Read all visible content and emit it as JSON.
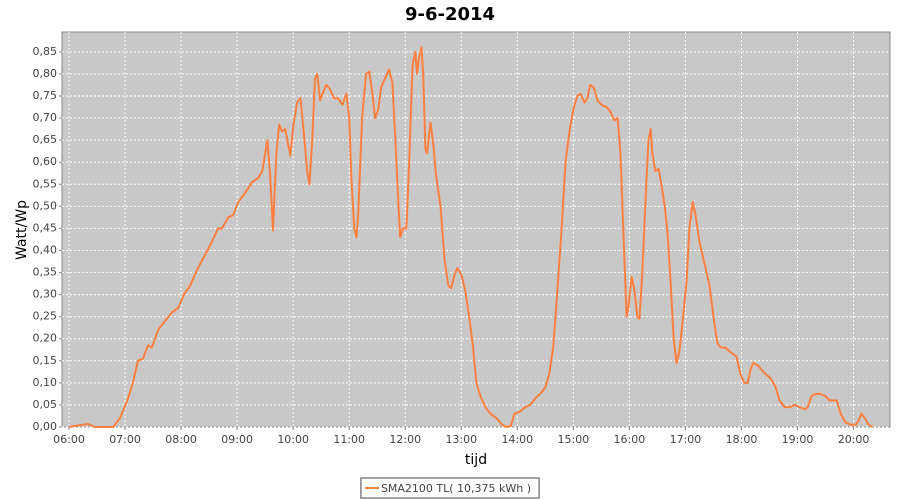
{
  "chart_data": {
    "type": "line",
    "title": "9-6-2014",
    "x_label": "tijd",
    "y_label": "Watt/Wp",
    "x": [
      6.0,
      6.34,
      6.46,
      6.79,
      6.91,
      7.04,
      7.14,
      7.23,
      7.32,
      7.41,
      7.48,
      7.59,
      7.71,
      7.84,
      7.95,
      8.05,
      8.16,
      8.3,
      8.43,
      8.55,
      8.66,
      8.73,
      8.84,
      8.93,
      9.02,
      9.14,
      9.27,
      9.38,
      9.45,
      9.54,
      9.59,
      9.64,
      9.7,
      9.75,
      9.8,
      9.86,
      9.91,
      9.95,
      10.0,
      10.07,
      10.13,
      10.18,
      10.25,
      10.29,
      10.34,
      10.39,
      10.43,
      10.48,
      10.54,
      10.59,
      10.66,
      10.73,
      10.8,
      10.88,
      10.95,
      11.0,
      11.04,
      11.09,
      11.13,
      11.16,
      11.23,
      11.3,
      11.36,
      11.41,
      11.46,
      11.52,
      11.57,
      11.64,
      11.71,
      11.77,
      11.82,
      11.88,
      11.91,
      11.96,
      12.02,
      12.07,
      12.13,
      12.18,
      12.21,
      12.25,
      12.29,
      12.32,
      12.36,
      12.39,
      12.45,
      12.5,
      12.55,
      12.63,
      12.7,
      12.77,
      12.82,
      12.88,
      12.93,
      13.0,
      13.07,
      13.14,
      13.21,
      13.27,
      13.34,
      13.43,
      13.52,
      13.63,
      13.73,
      13.8,
      13.88,
      13.95,
      14.05,
      14.14,
      14.23,
      14.32,
      14.41,
      14.5,
      14.57,
      14.64,
      14.71,
      14.79,
      14.86,
      14.93,
      15.0,
      15.07,
      15.13,
      15.2,
      15.25,
      15.3,
      15.36,
      15.43,
      15.5,
      15.59,
      15.66,
      15.73,
      15.79,
      15.84,
      15.89,
      15.95,
      15.98,
      16.04,
      16.09,
      16.14,
      16.18,
      16.23,
      16.29,
      16.34,
      16.38,
      16.41,
      16.46,
      16.52,
      16.57,
      16.63,
      16.68,
      16.73,
      16.79,
      16.84,
      16.89,
      16.95,
      17.02,
      17.07,
      17.13,
      17.18,
      17.25,
      17.34,
      17.43,
      17.5,
      17.57,
      17.63,
      17.71,
      17.8,
      17.91,
      17.98,
      18.05,
      18.11,
      18.16,
      18.21,
      18.29,
      18.39,
      18.52,
      18.61,
      18.68,
      18.77,
      18.86,
      18.95,
      19.04,
      19.13,
      19.18,
      19.25,
      19.32,
      19.41,
      19.5,
      19.57,
      19.64,
      19.7,
      19.77,
      19.86,
      19.95,
      20.04,
      20.09,
      20.14,
      20.2,
      20.27,
      20.34
    ],
    "series": [
      {
        "name": "SMA2100 TL( 10,375 kWh )",
        "color": "#ff7f3f",
        "values": [
          0,
          0.007,
          0,
          0,
          0.02,
          0.06,
          0.1,
          0.15,
          0.155,
          0.185,
          0.18,
          0.22,
          0.24,
          0.26,
          0.27,
          0.3,
          0.32,
          0.36,
          0.39,
          0.42,
          0.45,
          0.45,
          0.475,
          0.48,
          0.51,
          0.53,
          0.555,
          0.565,
          0.58,
          0.65,
          0.57,
          0.445,
          0.62,
          0.685,
          0.67,
          0.675,
          0.64,
          0.615,
          0.68,
          0.735,
          0.745,
          0.68,
          0.58,
          0.55,
          0.65,
          0.79,
          0.8,
          0.74,
          0.76,
          0.775,
          0.765,
          0.745,
          0.745,
          0.73,
          0.755,
          0.7,
          0.56,
          0.45,
          0.43,
          0.48,
          0.7,
          0.8,
          0.805,
          0.76,
          0.7,
          0.72,
          0.77,
          0.79,
          0.81,
          0.78,
          0.66,
          0.5,
          0.43,
          0.45,
          0.45,
          0.6,
          0.82,
          0.85,
          0.8,
          0.84,
          0.86,
          0.8,
          0.63,
          0.62,
          0.69,
          0.64,
          0.57,
          0.5,
          0.38,
          0.32,
          0.315,
          0.345,
          0.36,
          0.345,
          0.31,
          0.25,
          0.18,
          0.1,
          0.07,
          0.045,
          0.03,
          0.02,
          0.005,
          0,
          0.002,
          0.03,
          0.035,
          0.045,
          0.05,
          0.065,
          0.075,
          0.09,
          0.12,
          0.18,
          0.3,
          0.45,
          0.6,
          0.67,
          0.72,
          0.75,
          0.755,
          0.735,
          0.745,
          0.775,
          0.77,
          0.74,
          0.73,
          0.725,
          0.715,
          0.695,
          0.7,
          0.62,
          0.45,
          0.25,
          0.27,
          0.34,
          0.31,
          0.25,
          0.245,
          0.35,
          0.52,
          0.65,
          0.675,
          0.62,
          0.58,
          0.585,
          0.55,
          0.5,
          0.44,
          0.34,
          0.2,
          0.145,
          0.17,
          0.24,
          0.33,
          0.45,
          0.51,
          0.48,
          0.42,
          0.37,
          0.32,
          0.25,
          0.19,
          0.18,
          0.18,
          0.17,
          0.16,
          0.12,
          0.1,
          0.1,
          0.13,
          0.145,
          0.14,
          0.125,
          0.11,
          0.09,
          0.06,
          0.045,
          0.045,
          0.05,
          0.045,
          0.04,
          0.045,
          0.07,
          0.075,
          0.075,
          0.07,
          0.06,
          0.06,
          0.06,
          0.03,
          0.01,
          0.005,
          0.005,
          0.015,
          0.03,
          0.02,
          0.005,
          0
        ]
      }
    ],
    "xlim": [
      5.875,
      20.65
    ],
    "xticks": [
      {
        "value": 6,
        "label": "06:00"
      },
      {
        "value": 7,
        "label": "07:00"
      },
      {
        "value": 8,
        "label": "08:00"
      },
      {
        "value": 9,
        "label": "09:00"
      },
      {
        "value": 10,
        "label": "10:00"
      },
      {
        "value": 11,
        "label": "11:00"
      },
      {
        "value": 12,
        "label": "12:00"
      },
      {
        "value": 13,
        "label": "13:00"
      },
      {
        "value": 14,
        "label": "14:00"
      },
      {
        "value": 15,
        "label": "15:00"
      },
      {
        "value": 16,
        "label": "16:00"
      },
      {
        "value": 17,
        "label": "17:00"
      },
      {
        "value": 18,
        "label": "18:00"
      },
      {
        "value": 19,
        "label": "19:00"
      },
      {
        "value": 20,
        "label": "20:00"
      }
    ],
    "ylim": [
      0,
      0.895
    ],
    "yticks": [
      {
        "value": 0,
        "label": "0,00"
      },
      {
        "value": 0.05,
        "label": "0,05"
      },
      {
        "value": 0.1,
        "label": "0,10"
      },
      {
        "value": 0.15,
        "label": "0,15"
      },
      {
        "value": 0.2,
        "label": "0,20"
      },
      {
        "value": 0.25,
        "label": "0,25"
      },
      {
        "value": 0.3,
        "label": "0,30"
      },
      {
        "value": 0.35,
        "label": "0,35"
      },
      {
        "value": 0.4,
        "label": "0,40"
      },
      {
        "value": 0.45,
        "label": "0,45"
      },
      {
        "value": 0.5,
        "label": "0,50"
      },
      {
        "value": 0.55,
        "label": "0,55"
      },
      {
        "value": 0.6,
        "label": "0,60"
      },
      {
        "value": 0.65,
        "label": "0,65"
      },
      {
        "value": 0.7,
        "label": "0,70"
      },
      {
        "value": 0.75,
        "label": "0,75"
      },
      {
        "value": 0.8,
        "label": "0,80"
      },
      {
        "value": 0.85,
        "label": "0,85"
      }
    ],
    "grid": true,
    "plot_background": "#c8c8c8",
    "legend": "bottom"
  }
}
